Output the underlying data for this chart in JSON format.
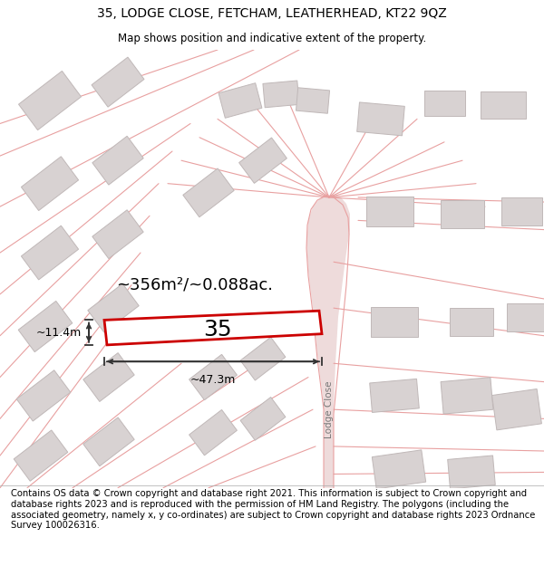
{
  "title_line1": "35, LODGE CLOSE, FETCHAM, LEATHERHEAD, KT22 9QZ",
  "title_line2": "Map shows position and indicative extent of the property.",
  "footer_text": "Contains OS data © Crown copyright and database right 2021. This information is subject to Crown copyright and database rights 2023 and is reproduced with the permission of HM Land Registry. The polygons (including the associated geometry, namely x, y co-ordinates) are subject to Crown copyright and database rights 2023 Ordnance Survey 100026316.",
  "area_label": "~356m²/~0.088ac.",
  "width_label": "~47.3m",
  "height_label": "~11.4m",
  "property_number": "35",
  "road_label": "Lodge Close",
  "bg_color": "#ffffff",
  "map_bg": "#ffffff",
  "road_fill": "#eedbdb",
  "road_line": "#e8a0a0",
  "building_fill": "#d8d2d2",
  "building_edge": "#c0b8b8",
  "property_stroke": "#cc0000",
  "property_fill": "#ffffff",
  "dim_color": "#333333",
  "title_fontsize": 10,
  "subtitle_fontsize": 8.5,
  "footer_fontsize": 7.2,
  "label_fontsize": 13,
  "num_fontsize": 18,
  "dim_fontsize": 9
}
